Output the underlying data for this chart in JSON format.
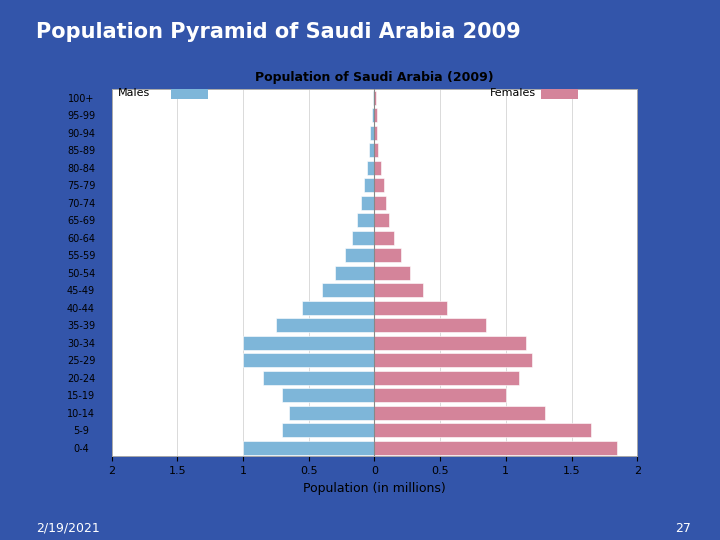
{
  "title": "Population Pyramid of Saudi Arabia 2009",
  "chart_title": "Population of Saudi Arabia (2009)",
  "xlabel": "Population (in millions)",
  "age_groups": [
    "0-4",
    "5-9",
    "10-14",
    "15-19",
    "20-24",
    "25-29",
    "30-34",
    "35-39",
    "40-44",
    "45-49",
    "50-54",
    "55-59",
    "60-64",
    "65-69",
    "70-74",
    "75-79",
    "80-84",
    "85-89",
    "90-94",
    "95-99",
    "100+"
  ],
  "males": [
    1.0,
    0.7,
    0.65,
    0.7,
    0.85,
    1.0,
    1.0,
    0.75,
    0.55,
    0.4,
    0.3,
    0.22,
    0.17,
    0.13,
    0.1,
    0.08,
    0.06,
    0.04,
    0.03,
    0.02,
    0.01
  ],
  "females": [
    1.85,
    1.65,
    1.3,
    1.0,
    1.1,
    1.2,
    1.15,
    0.85,
    0.55,
    0.37,
    0.27,
    0.2,
    0.15,
    0.11,
    0.09,
    0.07,
    0.05,
    0.03,
    0.02,
    0.02,
    0.01
  ],
  "male_color": "#7EB6D9",
  "female_color": "#D4849A",
  "bg_color": "#3355AA",
  "chart_bg": "#FFFFFF",
  "slide_title_color": "#1A33AA",
  "date_text": "2/19/2021",
  "page_num": "27",
  "xlim": 2.0,
  "tick_vals": [
    0.0,
    0.5,
    1.0,
    1.5,
    2.0
  ]
}
